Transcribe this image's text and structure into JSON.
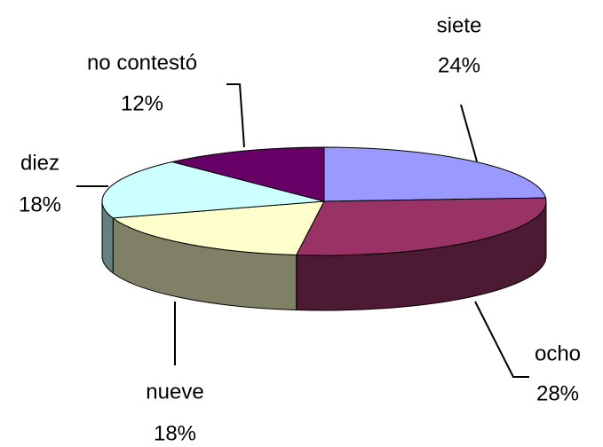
{
  "chart_data": {
    "type": "pie",
    "categories": [
      "siete",
      "ocho",
      "nueve",
      "diez",
      "no contestó"
    ],
    "values": [
      24,
      28,
      18,
      18,
      12
    ],
    "value_labels": [
      "24%",
      "28%",
      "18%",
      "18%",
      "12%"
    ],
    "colors": [
      "#9999ff",
      "#993366",
      "#ffffcc",
      "#ccffff",
      "#660066"
    ]
  }
}
